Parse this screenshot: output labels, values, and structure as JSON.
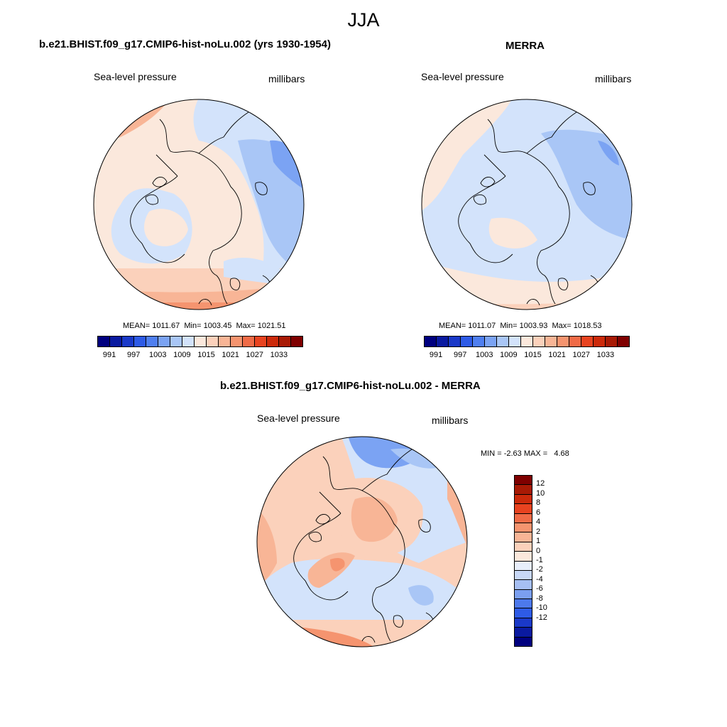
{
  "title": "JJA",
  "panels": [
    {
      "title": "b.e21.BHIST.f09_g17.CMIP6-hist-noLu.002 (yrs 1930-1954)",
      "variable": "Sea-level pressure",
      "units": "millibars",
      "stats": {
        "mean_label": "MEAN=",
        "mean": "1011.67",
        "min_label": "Min=",
        "min": "1003.45",
        "max_label": "Max=",
        "max": "1021.51"
      }
    },
    {
      "title": "MERRA",
      "variable": "Sea-level pressure",
      "units": "millibars",
      "stats": {
        "mean_label": "MEAN=",
        "mean": "1011.07",
        "min_label": "Min=",
        "min": "1003.93",
        "max_label": "Max=",
        "max": "1018.53"
      }
    },
    {
      "title": "b.e21.BHIST.f09_g17.CMIP6-hist-noLu.002 - MERRA",
      "variable": "Sea-level pressure",
      "units": "millibars",
      "stats": {
        "min_label": "MIN =",
        "min": "-2.63",
        "max_label": "MAX =",
        "max": "4.68"
      }
    }
  ],
  "abs_colorbar": {
    "colors": [
      "#00007f",
      "#0a1aa0",
      "#1a39c8",
      "#2e5be6",
      "#4f7ff0",
      "#7ba3f3",
      "#a9c6f6",
      "#d3e3fb",
      "#fbe8dc",
      "#fbd1bb",
      "#f8b596",
      "#f5946f",
      "#f06b47",
      "#e84320",
      "#cc2a0b",
      "#a81a05",
      "#7f0000"
    ],
    "labels": [
      "991",
      "997",
      "1003",
      "1009",
      "1015",
      "1021",
      "1027",
      "1033"
    ]
  },
  "diff_colorbar": {
    "colors": [
      "#7f0000",
      "#a81a05",
      "#cc2a0b",
      "#e84320",
      "#f06b47",
      "#f5946f",
      "#f8b596",
      "#fbd1bb",
      "#fbe8dc",
      "#e8eefb",
      "#c8d8f7",
      "#a6bff3",
      "#7b9ff0",
      "#4d79ec",
      "#2e5be6",
      "#1a39c8",
      "#0a1aa0",
      "#00007f"
    ],
    "labels": [
      "12",
      "10",
      "8",
      "6",
      "4",
      "2",
      "1",
      "0",
      "-1",
      "-2",
      "-4",
      "-6",
      "-8",
      "-10",
      "-12"
    ]
  }
}
